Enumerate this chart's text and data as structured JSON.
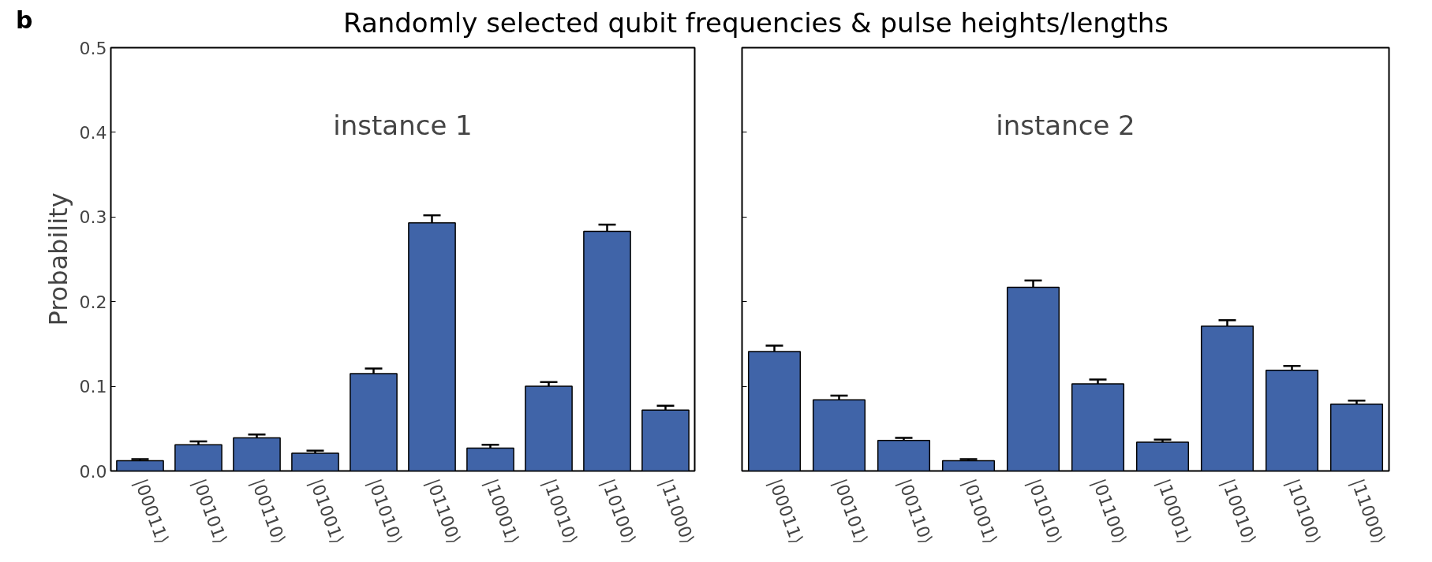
{
  "chart_data": [
    {
      "type": "bar",
      "title": "Randomly selected qubit frequencies & pulse heights/lengths",
      "ylabel": "Probability",
      "annotations": [
        "b",
        "instance 1"
      ],
      "categories": [
        "|00011⟩",
        "|00101⟩",
        "|00110⟩",
        "|01001⟩",
        "|01010⟩",
        "|01100⟩",
        "|10001⟩",
        "|10010⟩",
        "|10100⟩",
        "|11000⟩"
      ],
      "values": [
        0.012,
        0.031,
        0.039,
        0.021,
        0.115,
        0.293,
        0.027,
        0.1,
        0.283,
        0.072
      ],
      "errors": [
        0.002,
        0.004,
        0.004,
        0.003,
        0.006,
        0.009,
        0.004,
        0.005,
        0.008,
        0.005
      ],
      "color": "#4064a8",
      "ylim": [
        0,
        0.5
      ],
      "yticks": [
        {
          "value": 0,
          "label": "0.0"
        },
        0.1,
        0.2,
        0.3,
        0.4,
        0.5
      ],
      "grid": false
    },
    {
      "type": "bar",
      "annotations": [
        "instance 2"
      ],
      "categories": [
        "|00011⟩",
        "|00101⟩",
        "|00110⟩",
        "|01001⟩",
        "|01010⟩",
        "|01100⟩",
        "|10001⟩",
        "|10010⟩",
        "|10100⟩",
        "|11000⟩"
      ],
      "values": [
        0.141,
        0.084,
        0.036,
        0.012,
        0.217,
        0.103,
        0.034,
        0.171,
        0.119,
        0.079
      ],
      "errors": [
        0.007,
        0.005,
        0.003,
        0.002,
        0.008,
        0.005,
        0.003,
        0.007,
        0.005,
        0.004
      ],
      "color": "#4064a8",
      "ylim": [
        0,
        0.5
      ],
      "yticks": [
        {
          "value": 0,
          "label": null
        },
        {
          "value": 0.1,
          "label": null
        },
        {
          "value": 0.2,
          "label": null
        },
        {
          "value": 0.3,
          "label": null
        },
        {
          "value": 0.4,
          "label": null
        },
        {
          "value": 0.5,
          "label": null
        }
      ],
      "grid": false,
      "tick_labels": "x"
    }
  ]
}
